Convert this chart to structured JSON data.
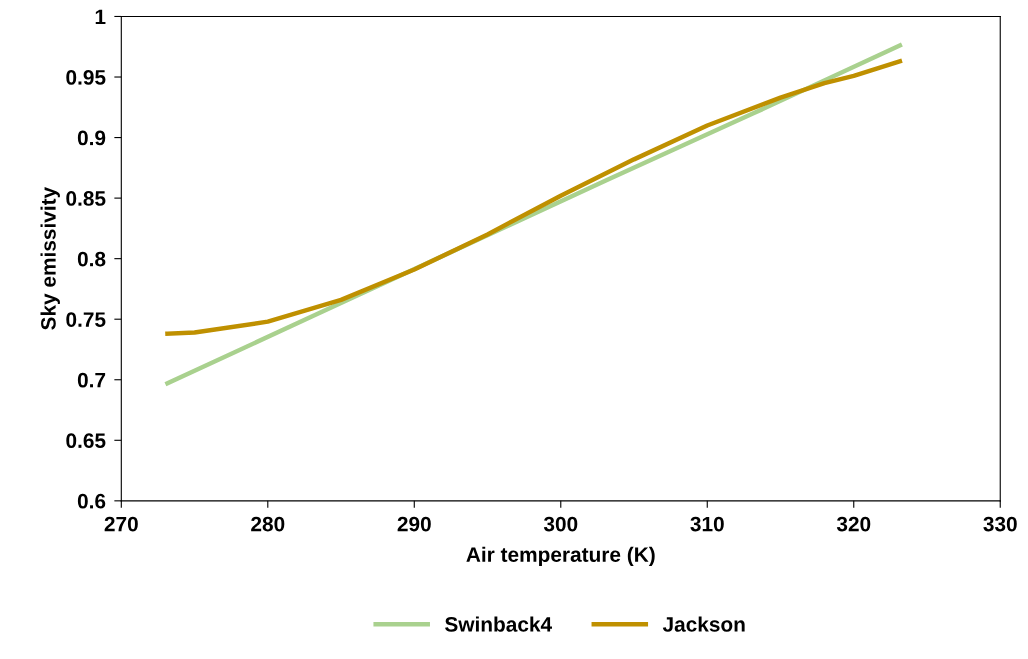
{
  "chart_data": {
    "type": "line",
    "xlabel": "Air temperature (K)",
    "ylabel": "Sky emissivity",
    "xlim": [
      270,
      330
    ],
    "xticks": [
      270,
      280,
      290,
      300,
      310,
      320,
      330
    ],
    "ylim": [
      0.6,
      1
    ],
    "yticks": [
      0.6,
      0.65,
      0.7,
      0.75,
      0.8,
      0.85,
      0.9,
      0.95,
      1
    ],
    "grid": false,
    "legend": "bottom",
    "marker": "none",
    "line_style": "solid",
    "series": [
      {
        "name": "Swinback4",
        "color": "#a9d18e",
        "x": [
          273.15,
          283.15,
          293.15,
          303.15,
          313.15,
          323.15
        ],
        "values": [
          0.697,
          0.753,
          0.809,
          0.865,
          0.92,
          0.976
        ]
      },
      {
        "name": "Jackson",
        "color": "#bf9000",
        "x": [
          273.15,
          275,
          280,
          285,
          290,
          295,
          300,
          305,
          310,
          315,
          318,
          320,
          323.15
        ],
        "values": [
          0.738,
          0.739,
          0.748,
          0.766,
          0.791,
          0.82,
          0.852,
          0.882,
          0.91,
          0.933,
          0.945,
          0.951,
          0.963
        ]
      }
    ]
  }
}
